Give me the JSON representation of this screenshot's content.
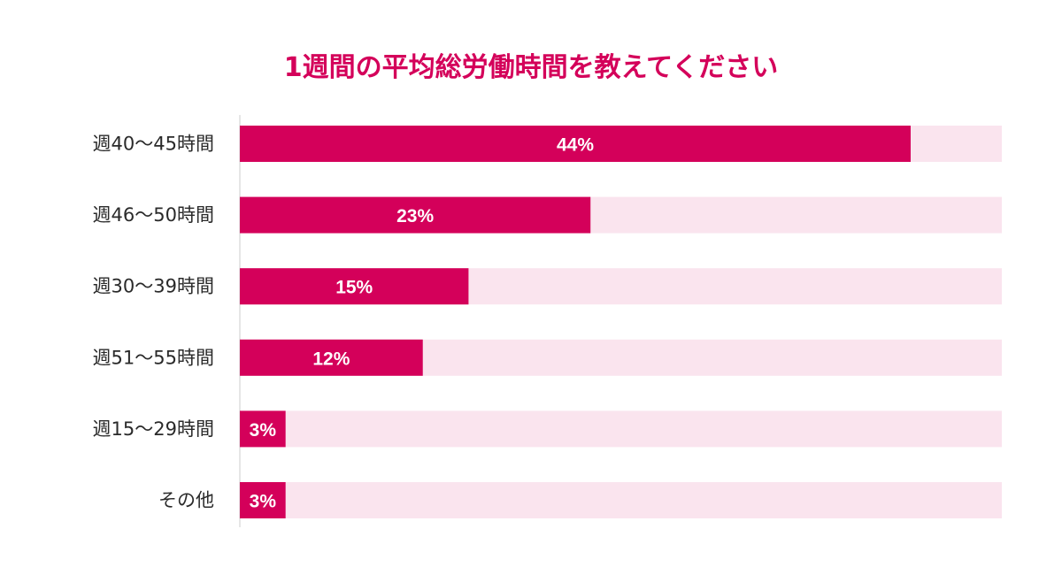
{
  "chart_data": {
    "type": "bar",
    "orientation": "horizontal",
    "title": "1週間の平均総労働時間を教えてください",
    "categories": [
      "週40〜45時間",
      "週46〜50時間",
      "週30〜39時間",
      "週51〜55時間",
      "週15〜29時間",
      "その他"
    ],
    "values": [
      44,
      23,
      15,
      12,
      3,
      3
    ],
    "value_labels": [
      "44%",
      "23%",
      "15%",
      "12%",
      "3%",
      "3%"
    ],
    "unit": "%",
    "xlim": [
      0,
      50
    ],
    "grid": false,
    "legend": "none",
    "colors": {
      "bar": "#d4005a",
      "track": "#fae4ee",
      "title": "#d4005a",
      "axis": "#cccccc",
      "label": "#2a2a2a",
      "value_text": "#ffffff"
    }
  }
}
